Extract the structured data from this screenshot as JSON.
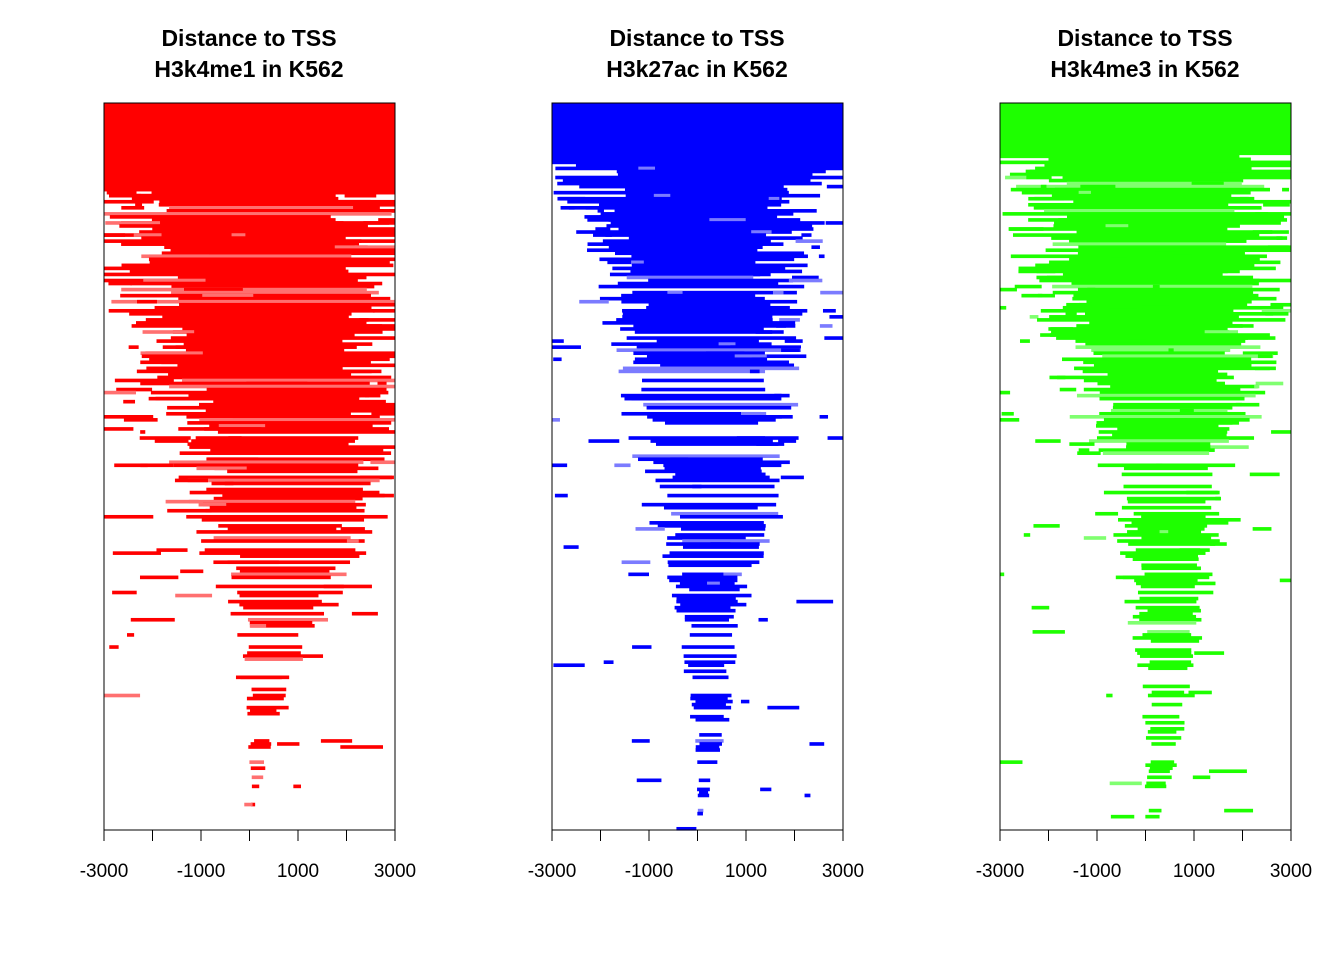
{
  "chart_data": [
    {
      "type": "heatmap",
      "title_line1": "Distance to TSS",
      "title_line2": "H3k4me1 in K562",
      "color": "#ff0000",
      "light_color": "#ff7070",
      "xlim": [
        -3000,
        3000
      ],
      "ylim": [
        0,
        1
      ],
      "grid": false,
      "legend": "none",
      "x_ticks": [
        -3000,
        -2000,
        -1000,
        0,
        1000,
        2000,
        3000
      ],
      "x_tick_labels": [
        "-3000",
        "",
        "-1000",
        "",
        "1000",
        "",
        "3000"
      ],
      "coverage_profile": [
        [
          0,
          -3000,
          3000
        ],
        [
          0.12,
          -3000,
          3000
        ],
        [
          0.28,
          -2600,
          3000
        ],
        [
          0.45,
          -1600,
          3000
        ],
        [
          0.6,
          -900,
          2500
        ],
        [
          0.75,
          -200,
          1200
        ],
        [
          0.88,
          0,
          500
        ],
        [
          1,
          0,
          0
        ]
      ],
      "row_fill_density": [
        [
          0,
          1.0
        ],
        [
          0.1,
          0.95
        ],
        [
          0.3,
          0.8
        ],
        [
          0.5,
          0.55
        ],
        [
          0.7,
          0.3
        ],
        [
          0.9,
          0.15
        ],
        [
          1,
          0.05
        ]
      ],
      "core_region_end": 0.12,
      "profile_shape": "broad",
      "rows": 240
    },
    {
      "type": "heatmap",
      "title_line1": "Distance to TSS",
      "title_line2": "H3k27ac in K562",
      "color": "#0000ff",
      "light_color": "#7b7bff",
      "xlim": [
        -3000,
        3000
      ],
      "ylim": [
        0,
        1
      ],
      "grid": false,
      "legend": "none",
      "x_ticks": [
        -3000,
        -2000,
        -1000,
        0,
        1000,
        2000,
        3000
      ],
      "x_tick_labels": [
        "-3000",
        "",
        "-1000",
        "",
        "1000",
        "",
        "3000"
      ],
      "coverage_profile": [
        [
          0,
          -3000,
          3000
        ],
        [
          0.08,
          -3000,
          3000
        ],
        [
          0.2,
          -2000,
          2000
        ],
        [
          0.4,
          -1400,
          2000
        ],
        [
          0.55,
          -1000,
          1700
        ],
        [
          0.7,
          -400,
          900
        ],
        [
          0.82,
          -200,
          700
        ],
        [
          0.9,
          0,
          500
        ],
        [
          1,
          0,
          0
        ]
      ],
      "row_fill_density": [
        [
          0,
          1.0
        ],
        [
          0.1,
          0.95
        ],
        [
          0.3,
          0.75
        ],
        [
          0.5,
          0.55
        ],
        [
          0.7,
          0.35
        ],
        [
          0.9,
          0.18
        ],
        [
          1,
          0.08
        ]
      ],
      "core_region_end": 0.08,
      "profile_shape": "funnel",
      "rows": 240
    },
    {
      "type": "heatmap",
      "title_line1": "Distance to TSS",
      "title_line2": "H3k4me3 in K562",
      "color": "#1eff00",
      "light_color": "#80ff70",
      "xlim": [
        -3000,
        3000
      ],
      "ylim": [
        0,
        1
      ],
      "grid": false,
      "legend": "none",
      "x_ticks": [
        -3000,
        -2000,
        -1000,
        0,
        1000,
        2000,
        3000
      ],
      "x_tick_labels": [
        "-3000",
        "",
        "-1000",
        "",
        "1000",
        "",
        "3000"
      ],
      "coverage_profile": [
        [
          0,
          -3000,
          3000
        ],
        [
          0.07,
          -3000,
          3000
        ],
        [
          0.2,
          -2500,
          2800
        ],
        [
          0.4,
          -1500,
          2300
        ],
        [
          0.55,
          -600,
          1700
        ],
        [
          0.7,
          -300,
          1300
        ],
        [
          0.82,
          0,
          1000
        ],
        [
          0.92,
          0,
          600
        ],
        [
          1,
          0,
          300
        ]
      ],
      "row_fill_density": [
        [
          0,
          1.0
        ],
        [
          0.1,
          0.97
        ],
        [
          0.3,
          0.85
        ],
        [
          0.5,
          0.65
        ],
        [
          0.7,
          0.45
        ],
        [
          0.9,
          0.25
        ],
        [
          1,
          0.1
        ]
      ],
      "core_region_end": 0.07,
      "profile_shape": "funnel",
      "rows": 240
    }
  ]
}
